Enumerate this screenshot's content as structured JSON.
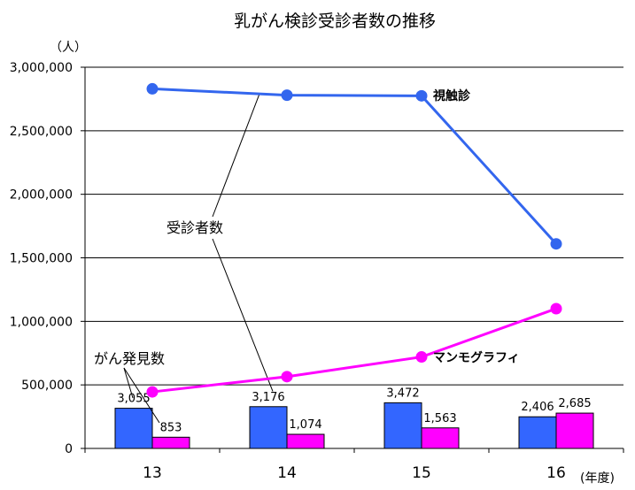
{
  "chart_data": {
    "type": "bar+line",
    "title": "乳がん検診受診者数の推移",
    "y_unit": "（人）",
    "x_unit": "(年度)",
    "categories": [
      "13",
      "14",
      "15",
      "16"
    ],
    "ylim": [
      0,
      3000000
    ],
    "y_ticks": [
      "0",
      "500,000",
      "1,000,000",
      "1,500,000",
      "2,000,000",
      "2,500,000",
      "3,000,000"
    ],
    "grid": true,
    "line_series": [
      {
        "name": "視触診",
        "color": "#3366ee",
        "values": [
          2830000,
          2780000,
          2775000,
          1610000
        ]
      },
      {
        "name": "マンモグラフィ",
        "color": "#ff00ff",
        "values": [
          445000,
          565000,
          720000,
          1100000
        ]
      }
    ],
    "bar_series": [
      {
        "color": "#3366ff",
        "values": [
          3055,
          3176,
          3472,
          2406
        ],
        "labels": [
          "3,055",
          "3,176",
          "3,472",
          "2,406"
        ]
      },
      {
        "color": "#ff00ff",
        "values": [
          853,
          1074,
          1563,
          2685
        ],
        "labels": [
          "853",
          "1,074",
          "1,563",
          "2,685"
        ]
      }
    ],
    "bar_scale_max": 10000,
    "annotations": {
      "line_group": "受診者数",
      "bar_group": "がん発見数"
    }
  }
}
